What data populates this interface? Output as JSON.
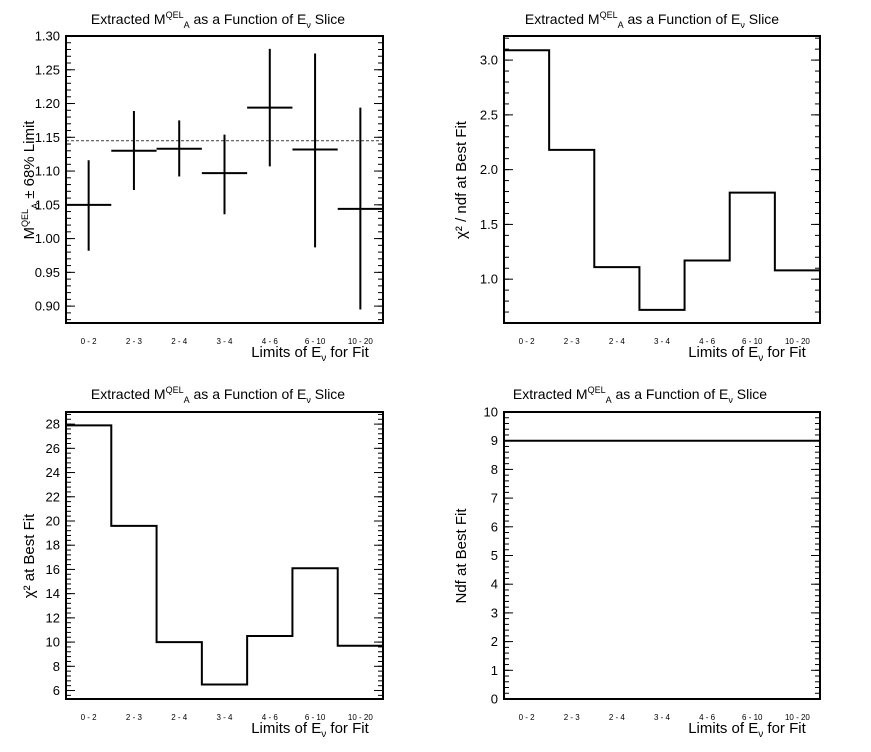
{
  "chart_data": [
    {
      "type": "errorbar",
      "title": {
        "pre": "Extracted M",
        "sup": "QEL",
        "sub": "A",
        "mid": " as a Function of E",
        "sub2": "ν",
        "post": " Slice"
      },
      "xlabel": {
        "pre": "Limits of E",
        "sub": "ν",
        "post": " for Fit"
      },
      "ylabel": "M_A^QEL ± 68% Limit",
      "categories": [
        "0 - 2",
        "2 - 3",
        "2 - 4",
        "3 - 4",
        "4 - 6",
        "6 - 10",
        "10 - 20"
      ],
      "values": [
        1.05,
        1.13,
        1.133,
        1.097,
        1.194,
        1.132,
        1.044
      ],
      "err_low": [
        0.982,
        1.072,
        1.092,
        1.036,
        1.107,
        0.987,
        0.895
      ],
      "err_high": [
        1.116,
        1.189,
        1.175,
        1.154,
        1.281,
        1.274,
        1.194
      ],
      "reference_line": 1.145,
      "ylim": [
        0.875,
        1.3
      ],
      "yticks": [
        "0.90",
        "0.95",
        "1.00",
        "1.05",
        "1.10",
        "1.15",
        "1.20",
        "1.25",
        "1.30"
      ]
    },
    {
      "type": "step",
      "title": {
        "pre": "Extracted M",
        "sup": "QEL",
        "sub": "A",
        "mid": " as a Function of E",
        "sub2": "ν",
        "post": " Slice"
      },
      "xlabel": {
        "pre": "Limits of E",
        "sub": "ν",
        "post": " for Fit"
      },
      "ylabel": "χ² / ndf at Best Fit",
      "categories": [
        "0 - 2",
        "2 - 3",
        "2 - 4",
        "3 - 4",
        "4 - 6",
        "6 - 10",
        "10 - 20"
      ],
      "values": [
        3.09,
        2.18,
        1.11,
        0.72,
        1.17,
        1.79,
        1.08
      ],
      "ylim": [
        0.6,
        3.22
      ],
      "yticks": [
        "1.0",
        "1.5",
        "2.0",
        "2.5",
        "3.0"
      ]
    },
    {
      "type": "step",
      "title": {
        "pre": "Extracted M",
        "sup": "QEL",
        "sub": "A",
        "mid": " as a Function of E",
        "sub2": "ν",
        "post": " Slice"
      },
      "xlabel": {
        "pre": "Limits of E",
        "sub": "ν",
        "post": " for Fit"
      },
      "ylabel": "χ² at Best Fit",
      "categories": [
        "0 - 2",
        "2 - 3",
        "2 - 4",
        "3 - 4",
        "4 - 6",
        "6 - 10",
        "10 - 20"
      ],
      "values": [
        27.9,
        19.6,
        10.0,
        6.5,
        10.5,
        16.1,
        9.7
      ],
      "ylim": [
        5.3,
        29.0
      ],
      "yticks": [
        "6",
        "8",
        "10",
        "12",
        "14",
        "16",
        "18",
        "20",
        "22",
        "24",
        "26",
        "28"
      ]
    },
    {
      "type": "step",
      "title": {
        "pre": "Extracted M",
        "sup": "QEL",
        "sub": "A",
        "mid": " as a Function of E",
        "sub2": "ν",
        "post": " Slice"
      },
      "xlabel": {
        "pre": "Limits of E",
        "sub": "ν",
        "post": " for Fit"
      },
      "ylabel": "Ndf at Best Fit",
      "categories": [
        "0 - 2",
        "2 - 3",
        "2 - 4",
        "3 - 4",
        "4 - 6",
        "6 - 10",
        "10 - 20"
      ],
      "values": [
        9,
        9,
        9,
        9,
        9,
        9,
        9
      ],
      "ylim": [
        0,
        10
      ],
      "yticks": [
        "0",
        "1",
        "2",
        "3",
        "4",
        "5",
        "6",
        "7",
        "8",
        "9",
        "10"
      ]
    }
  ]
}
